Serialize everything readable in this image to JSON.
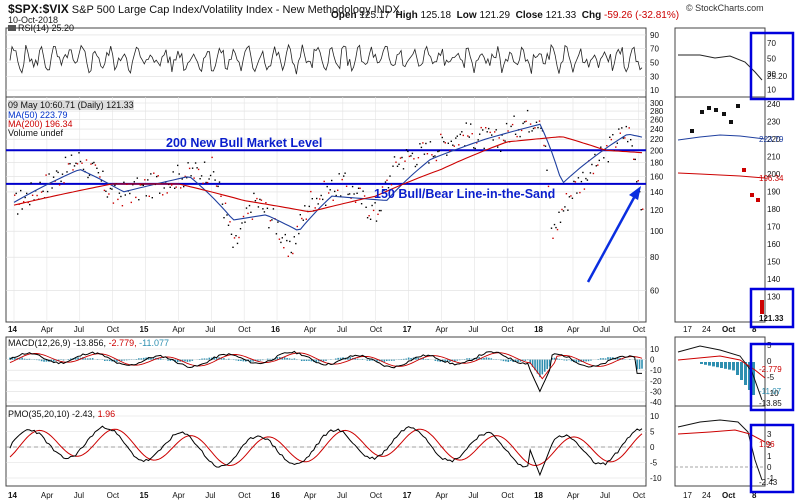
{
  "header": {
    "symbol": "$SPX:$VIX",
    "title": "S&P 500 Large Cap Index/Volatility Index - New Methodology",
    "exchange": "INDX",
    "date": "10-Oct-2018",
    "open_label": "Open",
    "open": "125.17",
    "high_label": "High",
    "high": "125.18",
    "low_label": "Low",
    "low": "121.29",
    "close_label": "Close",
    "close": "121.33",
    "chg_label": "Chg",
    "chg": "-59.26 (-32.81%)",
    "brand": "© StockCharts.com"
  },
  "colors": {
    "price": "#000000",
    "ma50": "#1f3f9f",
    "ma200": "#cc0000",
    "level": "#0000cc",
    "macd_hist": "#2e8fb0",
    "pmo": "#000000",
    "pmo_signal": "#cc0000"
  },
  "rsi_panel": {
    "label": "RSI(14) 25.20",
    "ticks": [
      90,
      70,
      50,
      30,
      10
    ],
    "zoom_ticks": [
      70,
      50,
      30,
      10
    ],
    "value_tag": "25.20"
  },
  "price_panel": {
    "legend_date": "09 May 10:60.71",
    "legend_period": "(Daily) 121.33",
    "ma50_label": "MA(50) 223.79",
    "ma200_label": "MA(200) 196.34",
    "volume_label": "Volume undef",
    "line_200_label": "200 New Bull Market Level",
    "line_150_label": "150 Bull/Bear Line-in-the-Sand",
    "ticks": [
      300,
      280,
      260,
      240,
      220,
      200,
      180,
      160,
      140,
      120,
      100,
      80,
      60
    ],
    "zoom_ticks": [
      240,
      230,
      220,
      210,
      200,
      190,
      180,
      170,
      160,
      150,
      140,
      130
    ],
    "tag_ma50": "223.79",
    "tag_ma200": "196.34",
    "tag_close": "121.33"
  },
  "macd_panel": {
    "label": "MACD(12,26,9) -13.856, -2.779, -11.077",
    "label_a": "MACD(12,26,9) -13.856,",
    "label_b": "-2.779,",
    "label_c": "-11.077",
    "ticks": [
      10,
      0,
      -10,
      -20,
      -30,
      -40
    ],
    "zoom_ticks": [
      5,
      0,
      -5,
      -10
    ],
    "tags": [
      "-2.779",
      "-11.07",
      "-13.85"
    ]
  },
  "pmo_panel": {
    "label_a": "PMO(35,20,10) -2.43,",
    "label_b": "1.96",
    "ticks": [
      10,
      5,
      0,
      -5,
      -10
    ],
    "zoom_ticks": [
      3,
      2,
      1,
      0,
      -1
    ],
    "tags": [
      "1.96",
      "-2.43"
    ]
  },
  "x_axis": {
    "labels": [
      "14",
      "Apr",
      "Jul",
      "Oct",
      "15",
      "Apr",
      "Jul",
      "Oct",
      "16",
      "Apr",
      "Jul",
      "Oct",
      "17",
      "Apr",
      "Jul",
      "Oct",
      "18",
      "Apr",
      "Jul",
      "Oct"
    ]
  },
  "zoom_x_axis": {
    "labels": [
      "17",
      "24",
      "Oct",
      "8"
    ]
  },
  "chart_data": {
    "type": "line",
    "title": "$SPX:$VIX S&P 500 Large Cap Index/Volatility Index - New Methodology",
    "x_range": [
      "2014-01",
      "2018-10-10"
    ],
    "y_scale": "log",
    "ylim": [
      50,
      300
    ],
    "horizontal_levels": [
      {
        "value": 200,
        "label": "200 New Bull Market Level"
      },
      {
        "value": 150,
        "label": "150 Bull/Bear Line-in-the-Sand"
      }
    ],
    "series": [
      {
        "name": "$SPX:$VIX",
        "x": [
          "2014-01",
          "2014-04",
          "2014-07",
          "2014-10",
          "2015-01",
          "2015-04",
          "2015-07",
          "2015-09",
          "2015-11",
          "2016-01",
          "2016-02",
          "2016-04",
          "2016-07",
          "2016-10",
          "2016-12",
          "2017-03",
          "2017-06",
          "2017-09",
          "2017-11",
          "2018-01",
          "2018-02",
          "2018-04",
          "2018-06",
          "2018-08",
          "2018-09",
          "2018-10-10"
        ],
        "values": [
          125,
          150,
          185,
          135,
          145,
          160,
          170,
          85,
          130,
          105,
          80,
          130,
          150,
          115,
          185,
          200,
          230,
          215,
          250,
          270,
          95,
          145,
          175,
          220,
          235,
          121
        ]
      },
      {
        "name": "MA(50)",
        "x": [
          "2014-01",
          "2014-07",
          "2014-11",
          "2015-05",
          "2015-09",
          "2015-12",
          "2016-03",
          "2016-06",
          "2016-11",
          "2017-03",
          "2017-08",
          "2018-01",
          "2018-03",
          "2018-06",
          "2018-09",
          "2018-10-10"
        ],
        "values": [
          128,
          170,
          140,
          160,
          110,
          115,
          100,
          135,
          130,
          185,
          220,
          250,
          150,
          190,
          230,
          224
        ]
      },
      {
        "name": "MA(200)",
        "x": [
          "2014-01",
          "2014-10",
          "2015-04",
          "2015-10",
          "2016-04",
          "2016-10",
          "2017-04",
          "2017-10",
          "2018-03",
          "2018-07",
          "2018-10-10"
        ],
        "values": [
          125,
          150,
          150,
          130,
          118,
          135,
          170,
          215,
          225,
          200,
          196
        ]
      }
    ]
  }
}
